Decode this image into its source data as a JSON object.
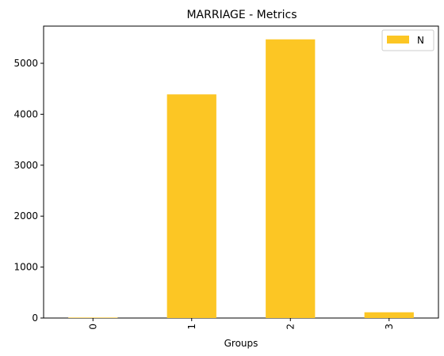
{
  "chart_data": {
    "type": "bar",
    "title": "MARRIAGE - Metrics",
    "xlabel": "Groups",
    "ylabel": "",
    "categories": [
      "0",
      "1",
      "2",
      "3"
    ],
    "series": [
      {
        "name": "N",
        "values": [
          9,
          4390,
          5470,
          113
        ]
      }
    ],
    "ylim": [
      0,
      5730
    ],
    "yticks": [
      0,
      1000,
      2000,
      3000,
      4000,
      5000
    ],
    "bar_color": "#fcc624",
    "legend_position": "top-right",
    "grid": false
  }
}
